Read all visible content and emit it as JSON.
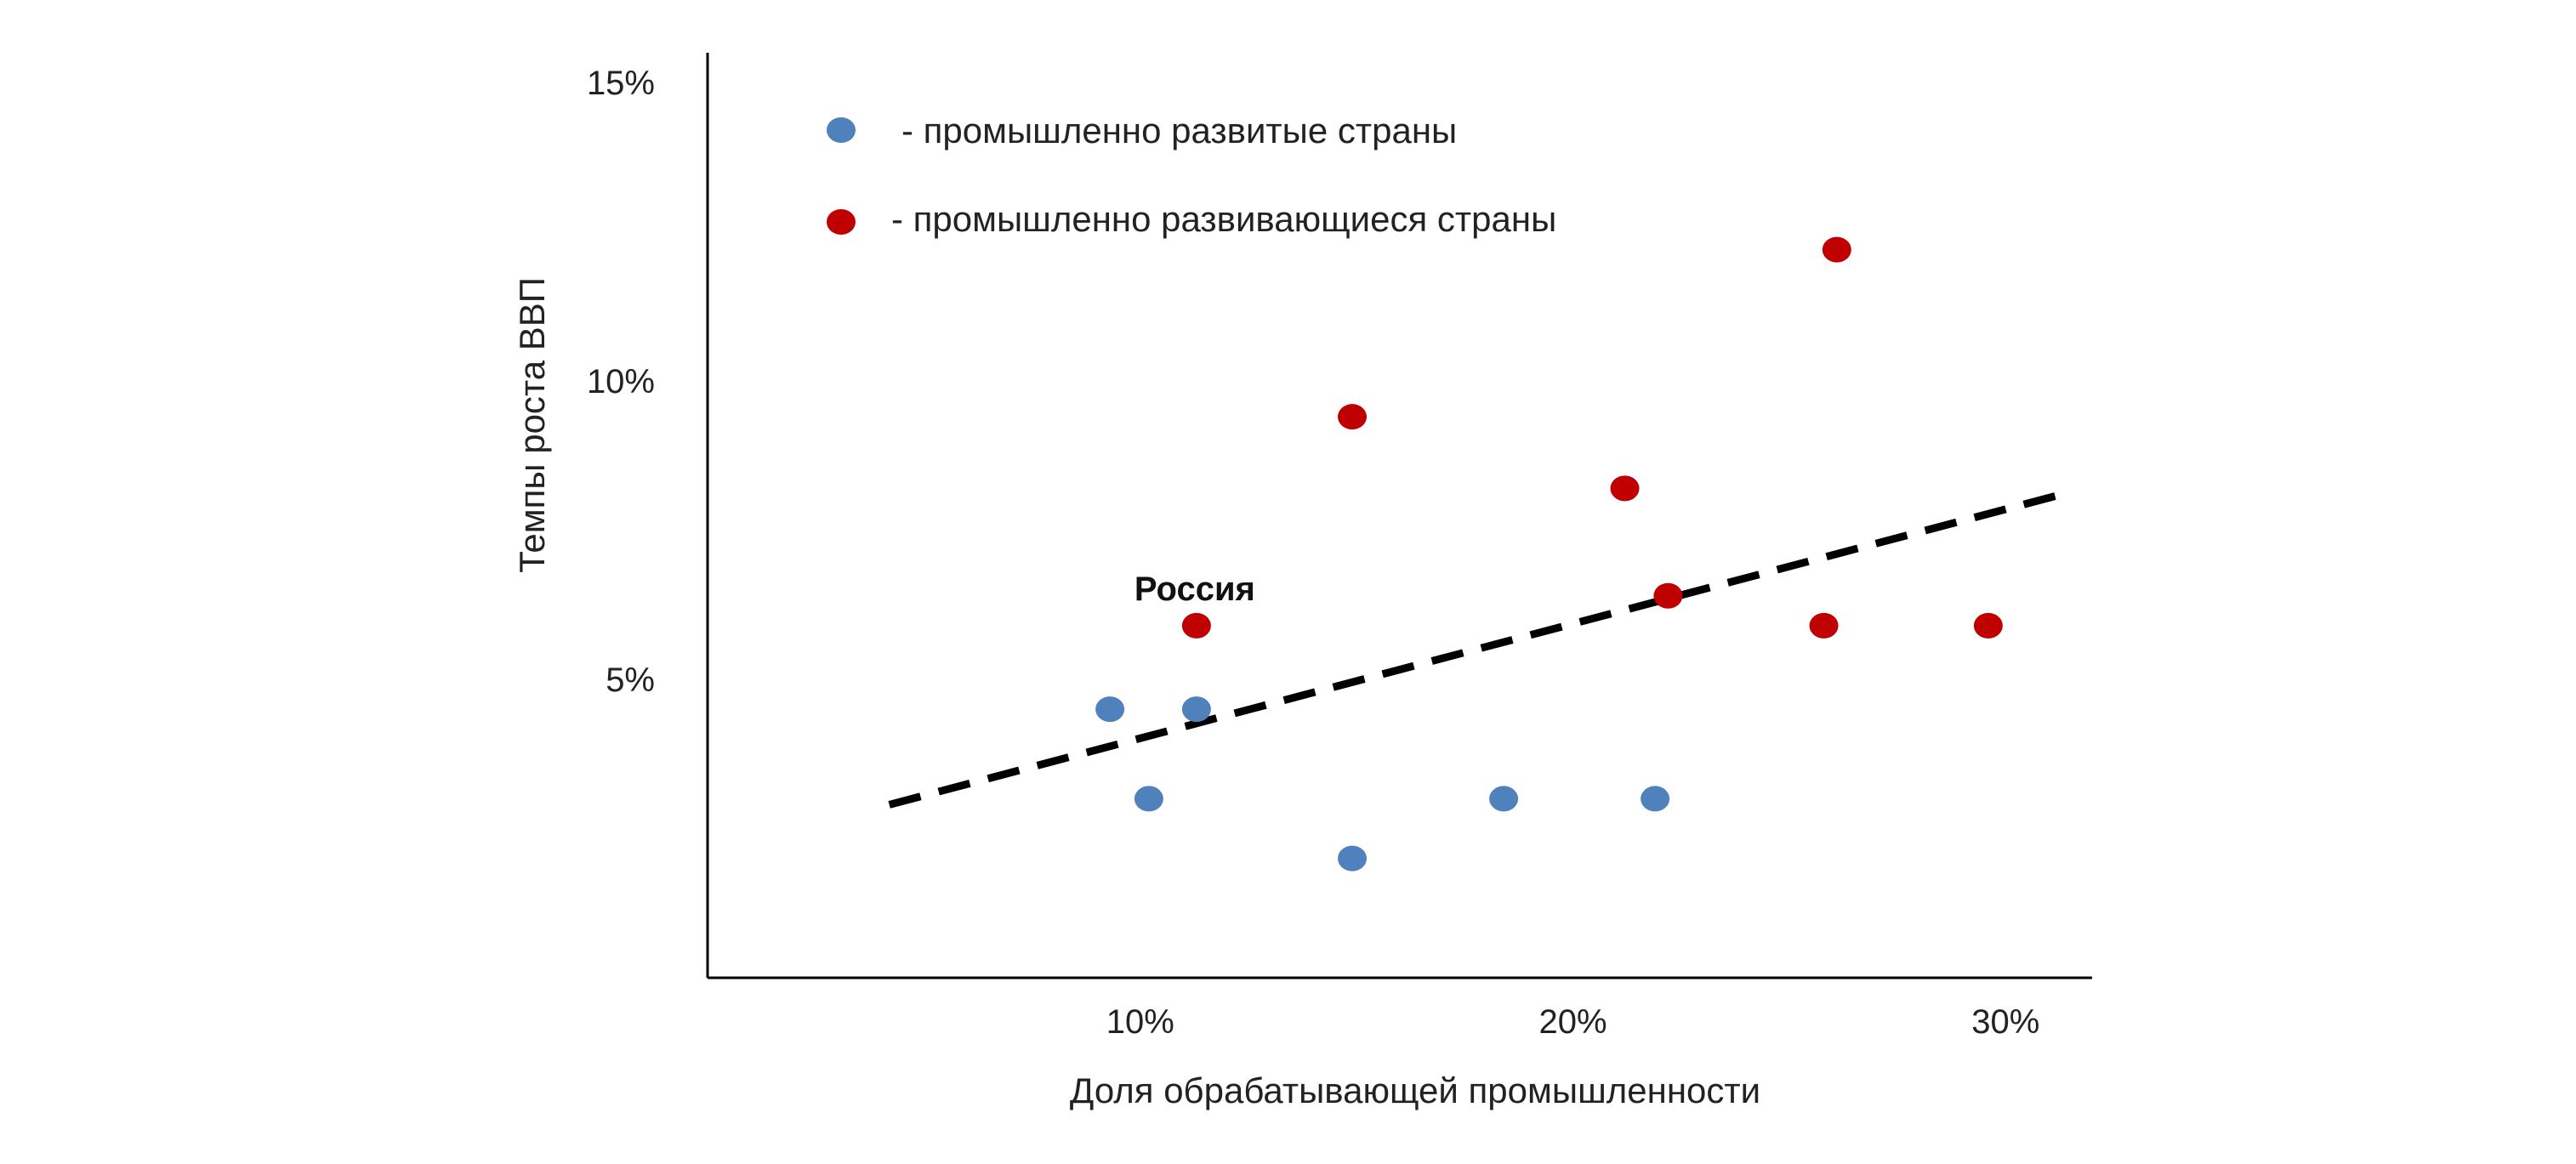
{
  "chart_data": {
    "type": "scatter",
    "title": "",
    "xlabel": "Доля обрабатывающей промышленности",
    "ylabel": "Темпы роста ВВП",
    "xlim": [
      0,
      32
    ],
    "ylim": [
      0,
      15.5
    ],
    "x_ticks": [
      {
        "value": 10,
        "label": "10%"
      },
      {
        "value": 20,
        "label": "20%"
      },
      {
        "value": 30,
        "label": "30%"
      }
    ],
    "y_ticks": [
      {
        "value": 5,
        "label": "5%"
      },
      {
        "value": 10,
        "label": "10%"
      },
      {
        "value": 15,
        "label": "15%"
      }
    ],
    "grid": false,
    "legend_position": "top-left",
    "series": [
      {
        "name": "- промышленно развитые страны",
        "color": "#4f81bd",
        "points": [
          {
            "x": 9.3,
            "y": 4.5
          },
          {
            "x": 10.2,
            "y": 3.0
          },
          {
            "x": 11.3,
            "y": 4.5
          },
          {
            "x": 14.9,
            "y": 2.0
          },
          {
            "x": 18.4,
            "y": 3.0
          },
          {
            "x": 21.9,
            "y": 3.0
          }
        ]
      },
      {
        "name": "- промышленно развивающиеся страны",
        "color": "#c00000",
        "points": [
          {
            "x": 11.3,
            "y": 5.9
          },
          {
            "x": 14.9,
            "y": 9.4
          },
          {
            "x": 21.2,
            "y": 8.2
          },
          {
            "x": 22.2,
            "y": 6.4
          },
          {
            "x": 25.8,
            "y": 5.9
          },
          {
            "x": 26.1,
            "y": 12.2
          },
          {
            "x": 29.6,
            "y": 5.9
          }
        ]
      }
    ],
    "trendline": {
      "style": "dashed",
      "color": "#000000",
      "from": {
        "x": 4.2,
        "y": 2.9
      },
      "to": {
        "x": 31.3,
        "y": 8.1
      }
    },
    "annotations": [
      {
        "text": "Россия",
        "x": 11.3,
        "y": 5.9
      }
    ]
  }
}
